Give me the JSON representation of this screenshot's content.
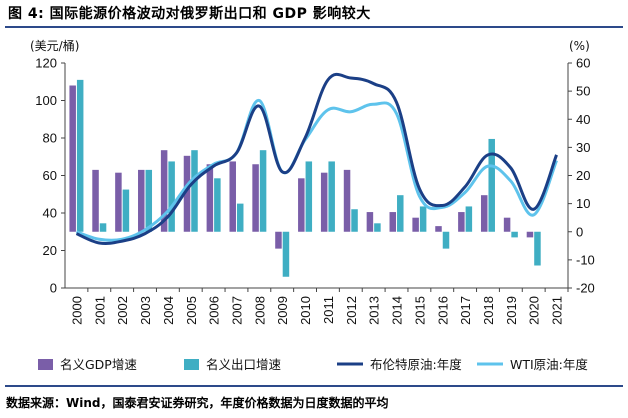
{
  "figure": {
    "title": "图 4: 国际能源价格波动对俄罗斯出口和 GDP 影响较大",
    "source": "数据来源：Wind，国泰君安证券研究，年度价格数据为日度数据的平均"
  },
  "chart_data": {
    "type": "bar+line",
    "categories": [
      "2000",
      "2001",
      "2002",
      "2003",
      "2004",
      "2005",
      "2006",
      "2007",
      "2008",
      "2009",
      "2010",
      "2011",
      "2012",
      "2013",
      "2014",
      "2015",
      "2016",
      "2017",
      "2018",
      "2019",
      "2020",
      "2021"
    ],
    "left_axis": {
      "unit_label": "(美元/桶)",
      "ylim": [
        0,
        120
      ],
      "ticks": [
        0,
        20,
        40,
        60,
        80,
        100,
        120
      ]
    },
    "right_axis": {
      "unit_label": "(%)",
      "ylim": [
        -20,
        60
      ],
      "ticks": [
        -20,
        -10,
        0,
        10,
        20,
        30,
        40,
        50,
        60
      ]
    },
    "series": [
      {
        "name": "名义GDP增速",
        "type": "bar",
        "axis": "right",
        "color": "#7a5ea8",
        "values": [
          52,
          22,
          21,
          22,
          29,
          27,
          24,
          25,
          24,
          -6,
          19,
          21,
          22,
          7,
          7,
          5,
          2,
          7,
          13,
          5,
          -2,
          null
        ]
      },
      {
        "name": "名义出口增速",
        "type": "bar",
        "axis": "right",
        "color": "#3faec3",
        "values": [
          54,
          3,
          15,
          22,
          25,
          29,
          19,
          10,
          29,
          -16,
          25,
          25,
          8,
          3,
          13,
          9,
          -6,
          9,
          33,
          -2,
          -12,
          null
        ]
      },
      {
        "name": "布伦特原油:年度",
        "type": "line",
        "axis": "left",
        "color": "#1b3f86",
        "values": [
          29,
          24,
          25,
          29,
          38,
          55,
          65,
          72,
          97,
          62,
          80,
          111,
          112,
          109,
          99,
          53,
          44,
          54,
          71,
          64,
          42,
          71
        ]
      },
      {
        "name": "WTI原油:年度",
        "type": "line",
        "axis": "left",
        "color": "#5ec3ec",
        "values": [
          30,
          26,
          26,
          31,
          41,
          57,
          66,
          72,
          100,
          62,
          79,
          95,
          94,
          98,
          93,
          49,
          43,
          51,
          65,
          57,
          39,
          68
        ]
      }
    ]
  }
}
